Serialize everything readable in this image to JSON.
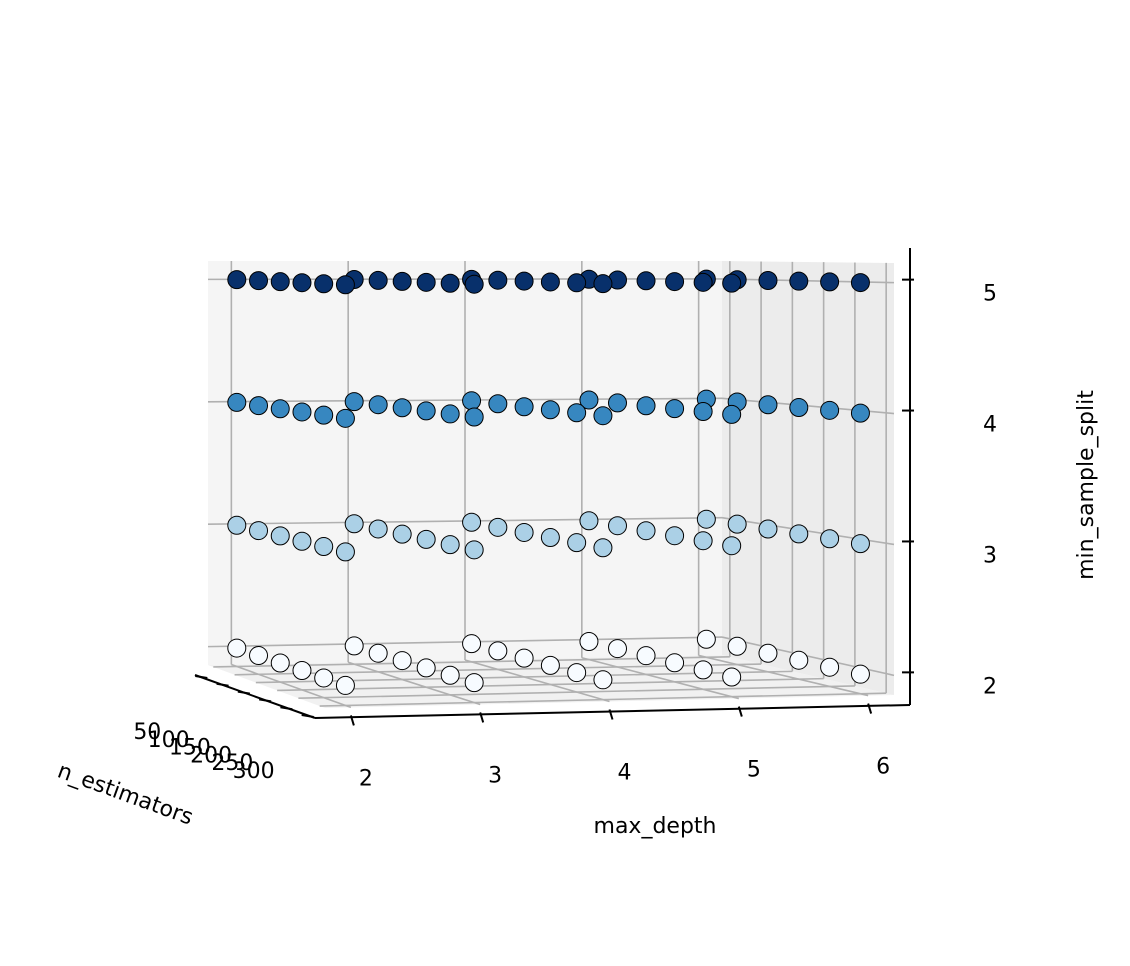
{
  "chart_data": {
    "type": "scatter3d",
    "xlabel": "n_estimators",
    "ylabel": "max_depth",
    "zlabel": "min_sample_split",
    "xlim": [
      37.5,
      312.5
    ],
    "xticks": [
      50,
      100,
      150,
      200,
      250,
      300
    ],
    "ylim": [
      1.8,
      6.2
    ],
    "yticks": [
      2,
      3,
      4,
      5,
      6
    ],
    "zlim": [
      1.85,
      5.15
    ],
    "zticks": [
      2,
      3,
      4,
      5
    ],
    "grid": true,
    "series": [
      {
        "color": "#f7fbff",
        "x": [
          50,
          100,
          150,
          200,
          250,
          300,
          50,
          100,
          150,
          200,
          250,
          300,
          50,
          100,
          150,
          200,
          250,
          300,
          50,
          100,
          150,
          200,
          250,
          300,
          50,
          100,
          150,
          200,
          250,
          300
        ],
        "y": [
          2,
          2,
          2,
          2,
          2,
          2,
          3,
          3,
          3,
          3,
          3,
          3,
          4,
          4,
          4,
          4,
          4,
          4,
          5,
          5,
          5,
          5,
          5,
          5,
          6,
          6,
          6,
          6,
          6,
          6
        ],
        "z": [
          2,
          2,
          2,
          2,
          2,
          2,
          2,
          2,
          2,
          2,
          2,
          2,
          2,
          2,
          2,
          2,
          2,
          2,
          2,
          2,
          2,
          2,
          2,
          2,
          2,
          2,
          2,
          2,
          2,
          2
        ]
      },
      {
        "color": "#abd0e6",
        "x": [
          50,
          100,
          150,
          200,
          250,
          300,
          50,
          100,
          150,
          200,
          250,
          300,
          50,
          100,
          150,
          200,
          250,
          300,
          50,
          100,
          150,
          200,
          250,
          300,
          50,
          100,
          150,
          200,
          250,
          300
        ],
        "y": [
          2,
          2,
          2,
          2,
          2,
          2,
          3,
          3,
          3,
          3,
          3,
          3,
          4,
          4,
          4,
          4,
          4,
          4,
          5,
          5,
          5,
          5,
          5,
          5,
          6,
          6,
          6,
          6,
          6,
          6
        ],
        "z": [
          3,
          3,
          3,
          3,
          3,
          3,
          3,
          3,
          3,
          3,
          3,
          3,
          3,
          3,
          3,
          3,
          3,
          3,
          3,
          3,
          3,
          3,
          3,
          3,
          3,
          3,
          3,
          3,
          3,
          3
        ]
      },
      {
        "color": "#3787c0",
        "x": [
          50,
          100,
          150,
          200,
          250,
          300,
          50,
          100,
          150,
          200,
          250,
          300,
          50,
          100,
          150,
          200,
          250,
          300,
          50,
          100,
          150,
          200,
          250,
          300,
          50,
          100,
          150,
          200,
          250,
          300
        ],
        "y": [
          2,
          2,
          2,
          2,
          2,
          2,
          3,
          3,
          3,
          3,
          3,
          3,
          4,
          4,
          4,
          4,
          4,
          4,
          5,
          5,
          5,
          5,
          5,
          5,
          6,
          6,
          6,
          6,
          6,
          6
        ],
        "z": [
          4,
          4,
          4,
          4,
          4,
          4,
          4,
          4,
          4,
          4,
          4,
          4,
          4,
          4,
          4,
          4,
          4,
          4,
          4,
          4,
          4,
          4,
          4,
          4,
          4,
          4,
          4,
          4,
          4,
          4
        ]
      },
      {
        "color": "#08306b",
        "x": [
          50,
          100,
          150,
          200,
          250,
          300,
          50,
          100,
          150,
          200,
          250,
          300,
          50,
          100,
          150,
          200,
          250,
          300,
          50,
          100,
          150,
          200,
          250,
          300,
          50,
          100,
          150,
          200,
          250,
          300
        ],
        "y": [
          2,
          2,
          2,
          2,
          2,
          2,
          3,
          3,
          3,
          3,
          3,
          3,
          4,
          4,
          4,
          4,
          4,
          4,
          5,
          5,
          5,
          5,
          5,
          5,
          6,
          6,
          6,
          6,
          6,
          6
        ],
        "z": [
          5,
          5,
          5,
          5,
          5,
          5,
          5,
          5,
          5,
          5,
          5,
          5,
          5,
          5,
          5,
          5,
          5,
          5,
          5,
          5,
          5,
          5,
          5,
          5,
          5,
          5,
          5,
          5,
          5,
          5
        ]
      }
    ]
  }
}
